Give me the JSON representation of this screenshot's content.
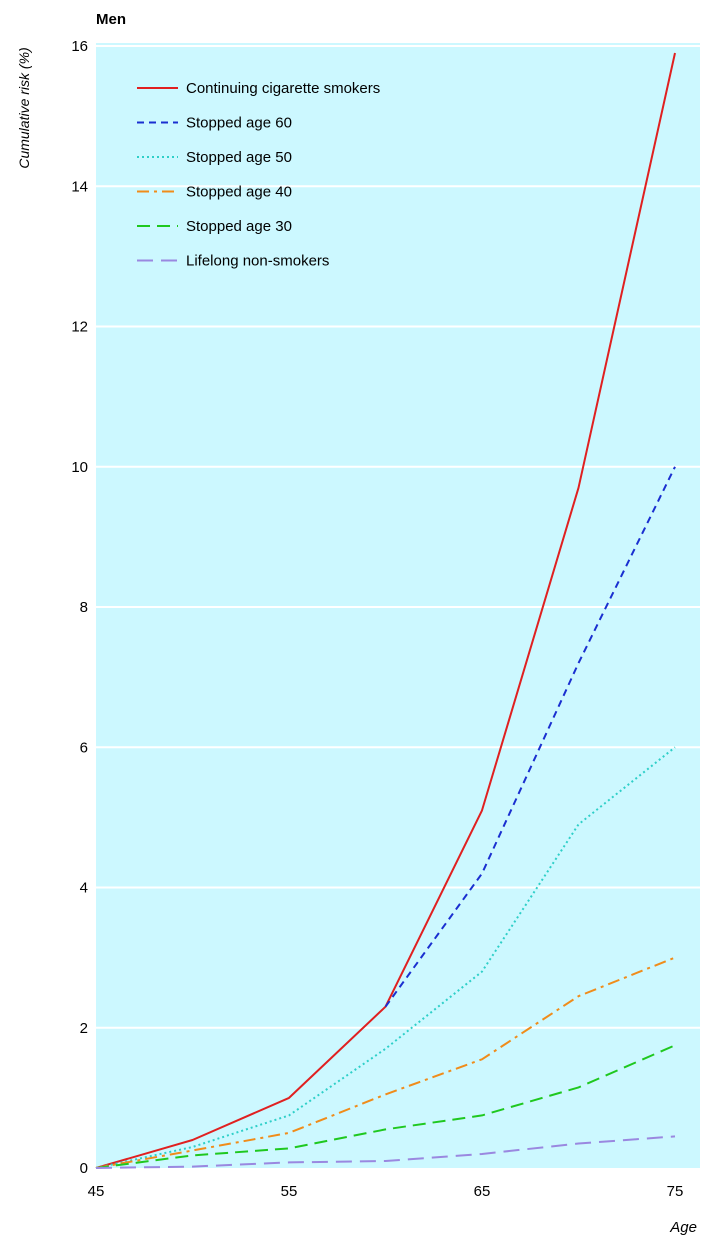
{
  "chart_data": {
    "type": "line",
    "title": "Men",
    "xlabel": "Age",
    "ylabel": "Cumulative risk (%)",
    "xlim": [
      45,
      75
    ],
    "ylim": [
      0,
      16
    ],
    "x_ticks": [
      "45",
      "55",
      "65",
      "75"
    ],
    "y_ticks": [
      "0",
      "2",
      "4",
      "6",
      "8",
      "10",
      "12",
      "14",
      "16"
    ],
    "grid": "horizontal",
    "legend_position": "top-left",
    "background": "#ccf8ff",
    "series": [
      {
        "name": "Continuing cigarette smokers",
        "color": "#e02020",
        "style": "solid",
        "x": [
          45,
          50,
          55,
          60,
          65,
          70,
          75
        ],
        "y": [
          0,
          0.4,
          1.0,
          2.3,
          5.1,
          9.7,
          15.9
        ]
      },
      {
        "name": "Stopped age 60",
        "color": "#1a2fd0",
        "style": "dashed",
        "x": [
          60,
          65,
          70,
          75
        ],
        "y": [
          2.3,
          4.2,
          7.2,
          10.0
        ]
      },
      {
        "name": "Stopped age 50",
        "color": "#2ecfc8",
        "style": "dotted",
        "x": [
          45,
          50,
          55,
          60,
          65,
          70,
          75
        ],
        "y": [
          0,
          0.3,
          0.75,
          1.7,
          2.8,
          4.9,
          6.0
        ]
      },
      {
        "name": "Stopped age 40",
        "color": "#f08c1a",
        "style": "dashdot",
        "x": [
          45,
          50,
          55,
          60,
          65,
          70,
          75
        ],
        "y": [
          0,
          0.25,
          0.5,
          1.05,
          1.55,
          2.45,
          3.0
        ]
      },
      {
        "name": "Stopped age 30",
        "color": "#1fc81f",
        "style": "longdash",
        "x": [
          45,
          50,
          55,
          60,
          65,
          70,
          75
        ],
        "y": [
          0,
          0.18,
          0.28,
          0.55,
          0.75,
          1.15,
          1.75
        ]
      },
      {
        "name": "Lifelong non-smokers",
        "color": "#9a88e0",
        "style": "longdash2",
        "x": [
          45,
          50,
          55,
          60,
          65,
          70,
          75
        ],
        "y": [
          0,
          0.02,
          0.08,
          0.1,
          0.2,
          0.35,
          0.45
        ]
      }
    ]
  }
}
